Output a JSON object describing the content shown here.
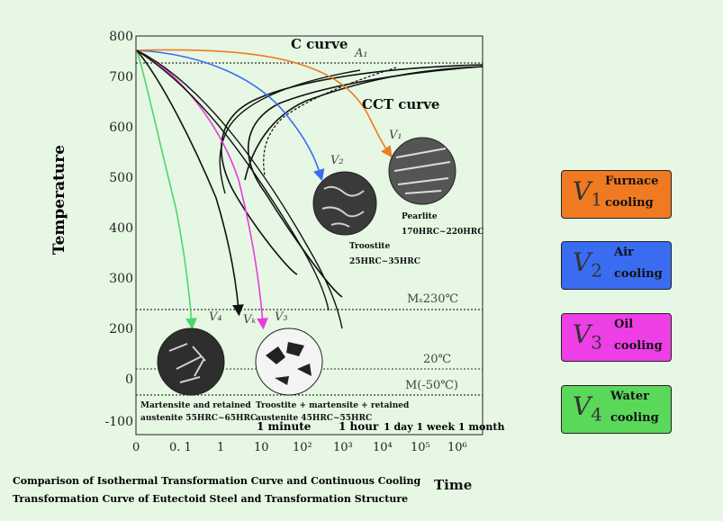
{
  "axes": {
    "ylabel": "Temperature",
    "xlabel": "Time",
    "yticks": [
      "800",
      "700",
      "600",
      "500",
      "400",
      "300",
      "200",
      "0",
      "-100"
    ],
    "xticks": [
      "0",
      "0. 1",
      "1",
      "10",
      "10²",
      "10³",
      "10⁴",
      "10⁵",
      "10⁶"
    ]
  },
  "curve_labels": {
    "c_curve": "C curve",
    "cct_curve": "CCT curve",
    "a1": "A₁"
  },
  "lines": {
    "ms": "Mₛ230℃",
    "mid": "20℃",
    "mf": "M(-50℃)"
  },
  "rate_labels": {
    "v1": "V₁",
    "v2": "V₂",
    "v3": "V₃",
    "v4": "V₄",
    "vk": "Vₖ"
  },
  "structures": {
    "pearlite": [
      "Pearlite",
      "170HRC~220HRC"
    ],
    "troostite": [
      "Troostite",
      "25HRC~35HRC"
    ],
    "martensite": [
      "Martensite and retained",
      "austenite 55HRC~65HRC"
    ],
    "troostite_mart": [
      "Troostite + martensite + retained",
      "austenite 45HRC~55HRC"
    ]
  },
  "time_marks": {
    "minute": "1 minute",
    "hour": "1 hour",
    "long": "1 day 1 week 1 month"
  },
  "caption": [
    "Comparison of Isothermal Transformation Curve and Continuous Cooling",
    "Transformation Curve of Eutectoid Steel and Transformation Structure"
  ],
  "legend": [
    {
      "sym": "V",
      "sub": "1",
      "line1": "Furnace",
      "line2": "cooling",
      "color": "#f07a21"
    },
    {
      "sym": "V",
      "sub": "2",
      "line1": "Air",
      "line2": "cooling",
      "color": "#3a6cf2"
    },
    {
      "sym": "V",
      "sub": "3",
      "line1": "Oil",
      "line2": "cooling",
      "color": "#ee3fe6"
    },
    {
      "sym": "V",
      "sub": "4",
      "line1": "Water",
      "line2": "cooling",
      "color": "#5ad85a"
    }
  ]
}
